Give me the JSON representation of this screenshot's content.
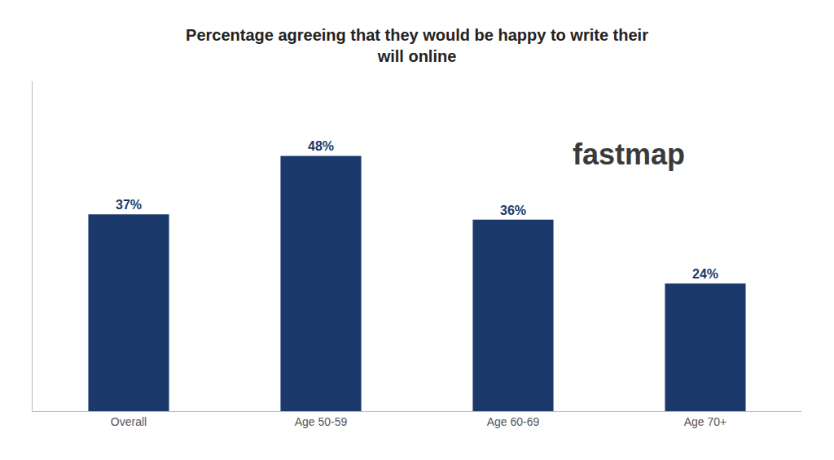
{
  "chart_data": {
    "type": "bar",
    "title": "Percentage agreeing that they would be happy to write their\nwill online",
    "categories": [
      "Overall",
      "Age 50-59",
      "Age 60-69",
      "Age 70+"
    ],
    "values": [
      37,
      48,
      36,
      24
    ],
    "value_labels": [
      "37%",
      "48%",
      "36%",
      "24%"
    ],
    "data_labels": true,
    "color": "#1b3a6b",
    "ylim": [
      0,
      62
    ],
    "grid": false,
    "tick_labels": "x",
    "annotations": [
      "fastmap"
    ]
  }
}
